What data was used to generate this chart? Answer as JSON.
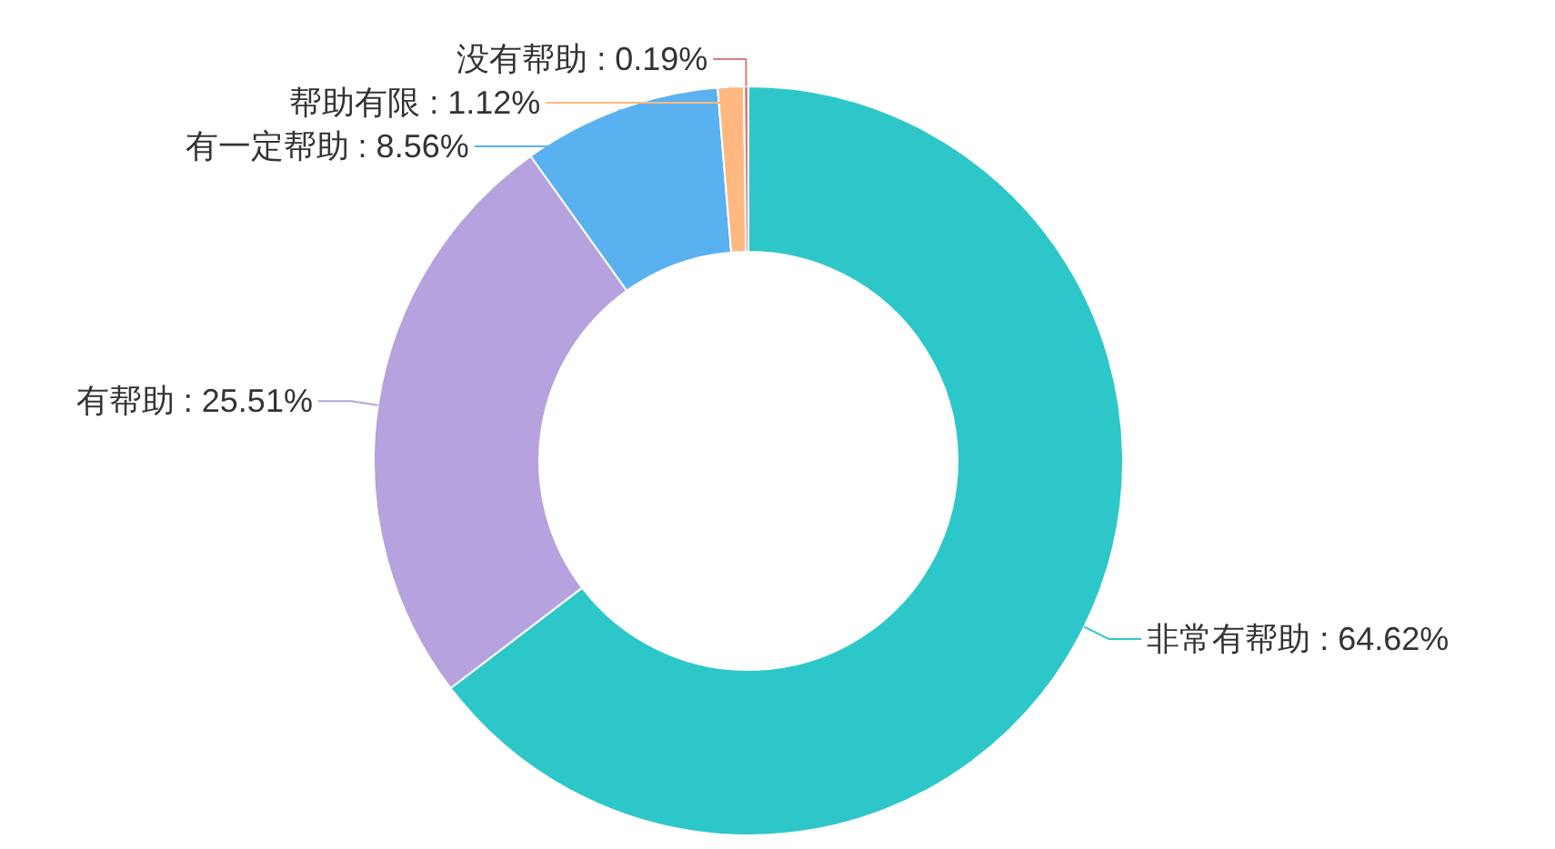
{
  "chart_data": {
    "type": "donut",
    "categories": [
      "非常有帮助",
      "有帮助",
      "有一定帮助",
      "帮助有限",
      "没有帮助"
    ],
    "values": [
      64.62,
      25.51,
      8.56,
      1.12,
      0.19
    ],
    "value_labels": [
      "64.62%",
      "25.51%",
      "8.56%",
      "1.12%",
      "0.19%"
    ],
    "colors": [
      "#2ec7c9",
      "#b6a2de",
      "#5ab1ef",
      "#ffb980",
      "#d87a80"
    ]
  }
}
